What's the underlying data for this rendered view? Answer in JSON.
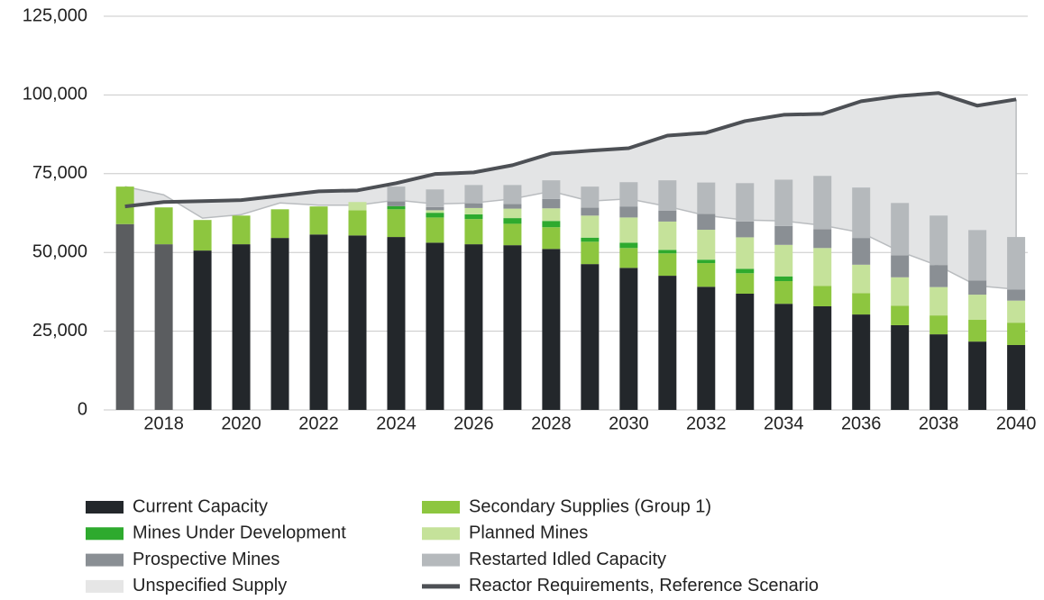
{
  "chart_data": {
    "type": "bar",
    "x": [
      2017,
      2018,
      2019,
      2020,
      2021,
      2022,
      2023,
      2024,
      2025,
      2026,
      2027,
      2028,
      2029,
      2030,
      2031,
      2032,
      2033,
      2034,
      2035,
      2036,
      2037,
      2038,
      2039,
      2040
    ],
    "xlim": [
      2016.45,
      2040.3
    ],
    "xticks": [
      2018,
      2020,
      2022,
      2024,
      2026,
      2028,
      2030,
      2032,
      2034,
      2036,
      2038,
      2040
    ],
    "ylim": [
      0,
      125000
    ],
    "yticks": [
      {
        "value": 0,
        "label": "0"
      },
      {
        "value": 25000,
        "label": "25,000"
      },
      {
        "value": 50000,
        "label": "50,000"
      },
      {
        "value": 75000,
        "label": "75,000"
      },
      {
        "value": 100000,
        "label": "100,000"
      },
      {
        "value": 125000,
        "label": "125,000"
      }
    ],
    "grid": true,
    "series": [
      {
        "name": "Current Capacity",
        "type": "bar",
        "color": "#23272b",
        "colors": [
          "#5b5d60",
          "#5b5d60",
          "#23272b",
          "#23272b",
          "#23272b",
          "#23272b",
          "#23272b",
          "#23272b",
          "#23272b",
          "#23272b",
          "#23272b",
          "#23272b",
          "#23272b",
          "#23272b",
          "#23272b",
          "#23272b",
          "#23272b",
          "#23272b",
          "#23272b",
          "#23272b",
          "#23272b",
          "#23272b",
          "#23272b",
          "#23272b"
        ],
        "values": [
          59000,
          52600,
          50600,
          52600,
          54600,
          55700,
          55400,
          54900,
          53100,
          52600,
          52300,
          51100,
          46300,
          45100,
          42600,
          39100,
          36900,
          33700,
          32900,
          30300,
          26900,
          24000,
          21700,
          20600
        ]
      },
      {
        "name": "Secondary Supplies (Group 1)",
        "type": "bar",
        "color": "#8dc63f",
        "values": [
          11900,
          11700,
          9700,
          9100,
          9100,
          8900,
          8000,
          8800,
          8000,
          8000,
          6800,
          6900,
          7100,
          6300,
          7100,
          7500,
          6500,
          7200,
          6500,
          6800,
          6200,
          6000,
          6900,
          7100
        ]
      },
      {
        "name": "Mines Under Development",
        "type": "bar",
        "color": "#2eaa2e",
        "values": [
          0,
          0,
          0,
          0,
          0,
          0,
          0,
          1000,
          1500,
          1500,
          1800,
          2000,
          1300,
          1700,
          1100,
          1100,
          1400,
          1500,
          0,
          0,
          0,
          0,
          0,
          0
        ]
      },
      {
        "name": "Planned Mines",
        "type": "bar",
        "color": "#c5e29a",
        "values": [
          0,
          0,
          0,
          0,
          0,
          0,
          2600,
          0,
          800,
          2000,
          3000,
          4000,
          7000,
          8000,
          9000,
          9500,
          10000,
          10000,
          12000,
          9000,
          9000,
          9000,
          8000,
          7000
        ]
      },
      {
        "name": "Prospective Mines",
        "type": "bar",
        "color": "#8a8f94",
        "values": [
          0,
          0,
          0,
          0,
          0,
          0,
          0,
          1500,
          1000,
          1500,
          1500,
          3000,
          2500,
          3500,
          3500,
          5000,
          5000,
          6000,
          6000,
          8500,
          7000,
          7000,
          4500,
          3500
        ]
      },
      {
        "name": "Restarted Idled Capacity",
        "type": "bar",
        "color": "#b5b9bc",
        "values": [
          0,
          0,
          0,
          0,
          0,
          0,
          0,
          4700,
          5600,
          5800,
          6000,
          5900,
          6700,
          7700,
          9600,
          10000,
          12200,
          14700,
          16900,
          16000,
          16600,
          15700,
          16000,
          16700
        ]
      },
      {
        "name": "Unspecified Supply",
        "type": "area",
        "color": "#e3e4e5",
        "values": [
          70900,
          68300,
          60900,
          62000,
          65700,
          65000,
          65000,
          66600,
          65400,
          65700,
          67000,
          69400,
          66300,
          67000,
          64600,
          61700,
          60300,
          60000,
          58600,
          56300,
          50300,
          45700,
          39400,
          38300
        ]
      },
      {
        "name": "Reactor Requirements, Reference Scenario",
        "type": "line",
        "color": "#4d5055",
        "values": [
          64600,
          66000,
          66300,
          66600,
          68000,
          69400,
          69700,
          72000,
          74900,
          75400,
          77700,
          81400,
          82300,
          83100,
          87100,
          88000,
          91700,
          93700,
          94000,
          98000,
          99700,
          100600,
          96600,
          98600
        ]
      }
    ]
  }
}
